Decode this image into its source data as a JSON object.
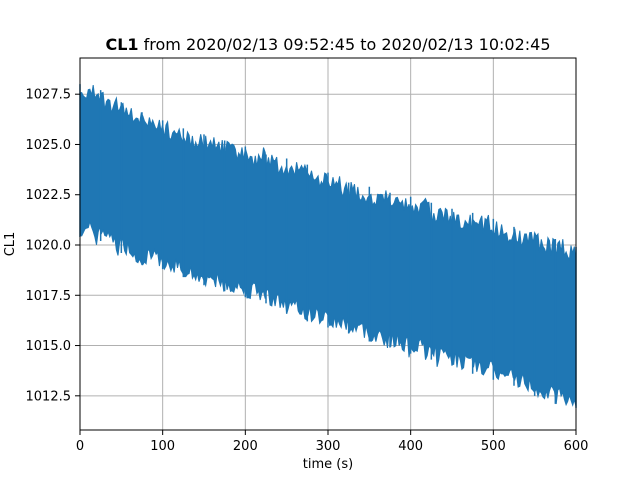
{
  "chart_data": {
    "type": "area",
    "title_bold": "CL1",
    "title_rest": " from 2020/02/13 09:52:45 to 2020/02/13 10:02:45",
    "xlabel": "time (s)",
    "ylabel": "CL1",
    "xlim": [
      0,
      600
    ],
    "ylim": [
      1010.8,
      1029.3
    ],
    "grid": true,
    "xticks": [
      0,
      100,
      200,
      300,
      400,
      500,
      600
    ],
    "xtick_labels": [
      "0",
      "100",
      "200",
      "300",
      "400",
      "500",
      "600"
    ],
    "yticks": [
      1012.5,
      1015.0,
      1017.5,
      1020.0,
      1022.5,
      1025.0,
      1027.5
    ],
    "ytick_labels": [
      "1012.5",
      "1015.0",
      "1017.5",
      "1020.0",
      "1022.5",
      "1025.0",
      "1027.5"
    ],
    "series": [
      {
        "color": "#1f77b4",
        "x": [
          0,
          25,
          50,
          75,
          100,
          125,
          150,
          175,
          200,
          225,
          250,
          275,
          300,
          325,
          350,
          375,
          400,
          425,
          450,
          475,
          500,
          525,
          550,
          575,
          600
        ],
        "upper": [
          1028.0,
          1027.7,
          1027.1,
          1026.6,
          1026.2,
          1025.8,
          1025.5,
          1025.2,
          1024.9,
          1024.5,
          1024.3,
          1024.0,
          1023.6,
          1023.1,
          1022.9,
          1022.6,
          1022.4,
          1022.1,
          1021.8,
          1021.6,
          1021.3,
          1020.9,
          1020.6,
          1020.3,
          1019.9
        ],
        "lower": [
          1020.4,
          1020.2,
          1019.6,
          1019.0,
          1018.8,
          1018.4,
          1018.0,
          1017.7,
          1017.4,
          1017.1,
          1016.6,
          1016.2,
          1015.9,
          1015.6,
          1015.2,
          1014.9,
          1014.6,
          1014.3,
          1014.0,
          1013.6,
          1013.3,
          1013.0,
          1012.5,
          1012.1,
          1011.9
        ]
      }
    ]
  }
}
